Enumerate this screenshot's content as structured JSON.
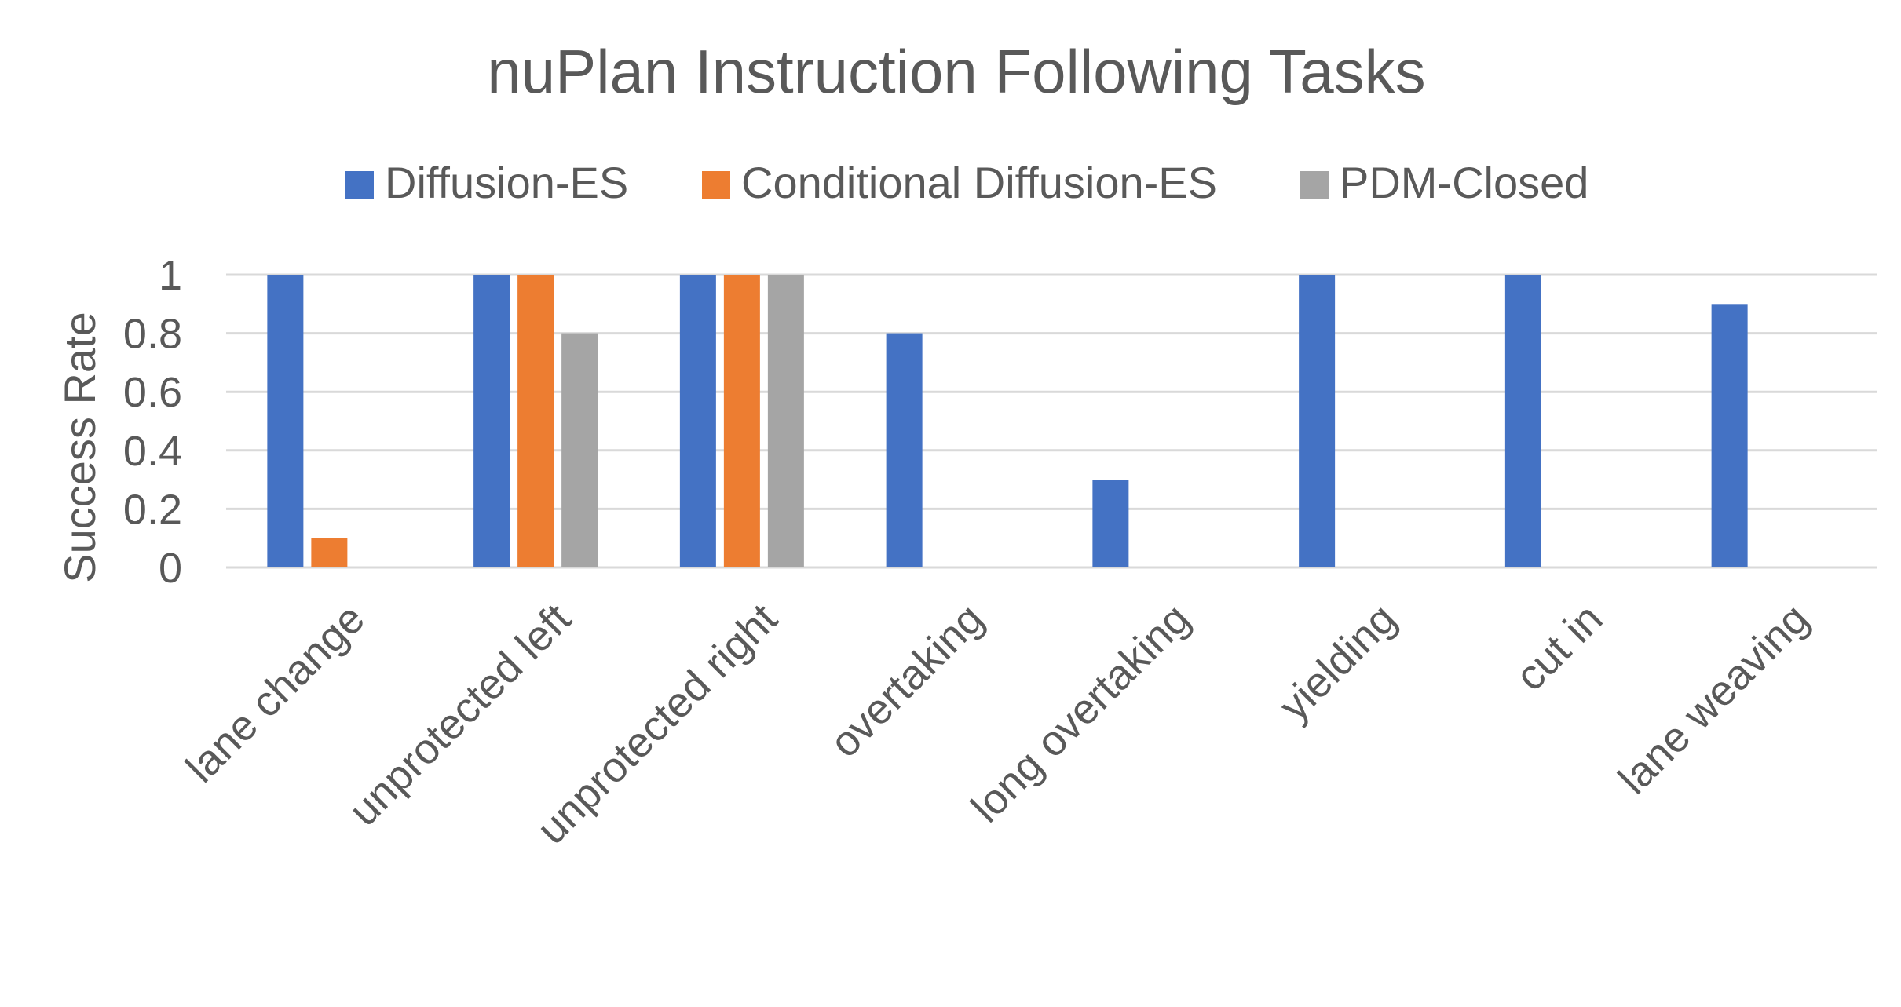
{
  "chart_data": {
    "type": "bar",
    "title": "nuPlan Instruction Following Tasks",
    "xlabel": "",
    "ylabel": "Success Rate",
    "ylim": [
      0,
      1
    ],
    "yticks": [
      "0",
      "0.2",
      "0.4",
      "0.6",
      "0.8",
      "1"
    ],
    "ytick_values": [
      0,
      0.2,
      0.4,
      0.6,
      0.8,
      1
    ],
    "grid": true,
    "legend_position": "top",
    "categories": [
      "lane change",
      "unprotected left",
      "unprotected right",
      "overtaking",
      "long overtaking",
      "yielding",
      "cut in",
      "lane weaving"
    ],
    "series": [
      {
        "name": "Diffusion-ES",
        "color": "#4472C4",
        "values": [
          1,
          1,
          1,
          0.8,
          0.3,
          1,
          1,
          0.9
        ]
      },
      {
        "name": "Conditional Diffusion-ES",
        "color": "#ED7D31",
        "values": [
          0.1,
          1,
          1,
          0,
          0,
          0,
          0,
          0
        ]
      },
      {
        "name": "PDM-Closed",
        "color": "#A5A5A5",
        "values": [
          0,
          0.8,
          1,
          0,
          0,
          0,
          0,
          0
        ]
      }
    ]
  }
}
